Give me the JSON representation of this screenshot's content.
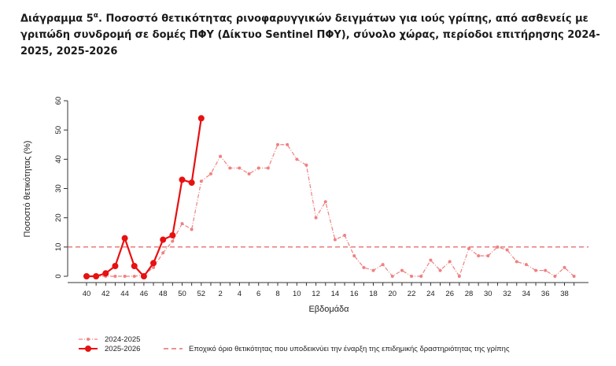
{
  "title": {
    "prefix": "Διάγραμμα 5",
    "sup": "α",
    "text": ". Ποσοστό θετικότητας ρινοφαρυγγικών δειγμάτων για ιούς γρίπης, από ασθενείς με γριπώδη συνδρομή σε δομές ΠΦΥ (Δίκτυο Sentinel ΠΦΥ), σύνολο χώρας, περίοδοι επιτήρησης 2024-2025, 2025-2026"
  },
  "chart_data": {
    "type": "line",
    "xlabel": "Εβδομάδα",
    "ylabel": "Ποσοστό θετικότητας (%)",
    "ylim": [
      0,
      60
    ],
    "yticks": [
      0,
      10,
      20,
      30,
      40,
      50,
      60
    ],
    "x_weeks": [
      40,
      41,
      42,
      43,
      44,
      45,
      46,
      47,
      48,
      49,
      50,
      51,
      52,
      1,
      2,
      3,
      4,
      5,
      6,
      7,
      8,
      9,
      10,
      11,
      12,
      13,
      14,
      15,
      16,
      17,
      18,
      19,
      20,
      21,
      22,
      23,
      24,
      25,
      26,
      27,
      28,
      29,
      30,
      31,
      32,
      33,
      34,
      35,
      36,
      37,
      38,
      39
    ],
    "x_tick_labels": [
      "40",
      "42",
      "44",
      "46",
      "48",
      "50",
      "52",
      "2",
      "4",
      "6",
      "8",
      "10",
      "12",
      "14",
      "16",
      "18",
      "20",
      "22",
      "24",
      "26",
      "28",
      "30",
      "32",
      "34",
      "36",
      "38"
    ],
    "threshold": 10,
    "series": [
      {
        "name": "2024-2025",
        "color": "#f08080",
        "style": "dash-dot",
        "values": [
          0,
          0,
          0,
          0,
          0,
          0,
          0.5,
          3,
          8,
          12,
          18,
          16,
          32.5,
          35,
          41,
          37,
          37,
          35,
          37,
          37,
          45,
          45,
          40,
          38,
          20,
          25.5,
          12.5,
          14,
          7,
          3,
          2,
          4,
          0,
          2,
          0,
          0,
          5.5,
          2,
          5,
          0,
          9.5,
          7,
          7,
          10,
          9,
          5,
          4,
          2,
          2,
          0,
          3,
          0
        ]
      },
      {
        "name": "2025-2026",
        "color": "#e81010",
        "style": "solid",
        "values": [
          0,
          0,
          1,
          3.5,
          13,
          3.5,
          0,
          4.5,
          12.5,
          14,
          33,
          32,
          54
        ]
      }
    ],
    "legend": [
      {
        "label": "2024-2025"
      },
      {
        "label": "2025-2026"
      },
      {
        "label": "Εποχικό όριο θετικότητας που υποδεικνύει την έναρξη της επιδημικής δραστηριότητας της γρίπης"
      }
    ]
  }
}
